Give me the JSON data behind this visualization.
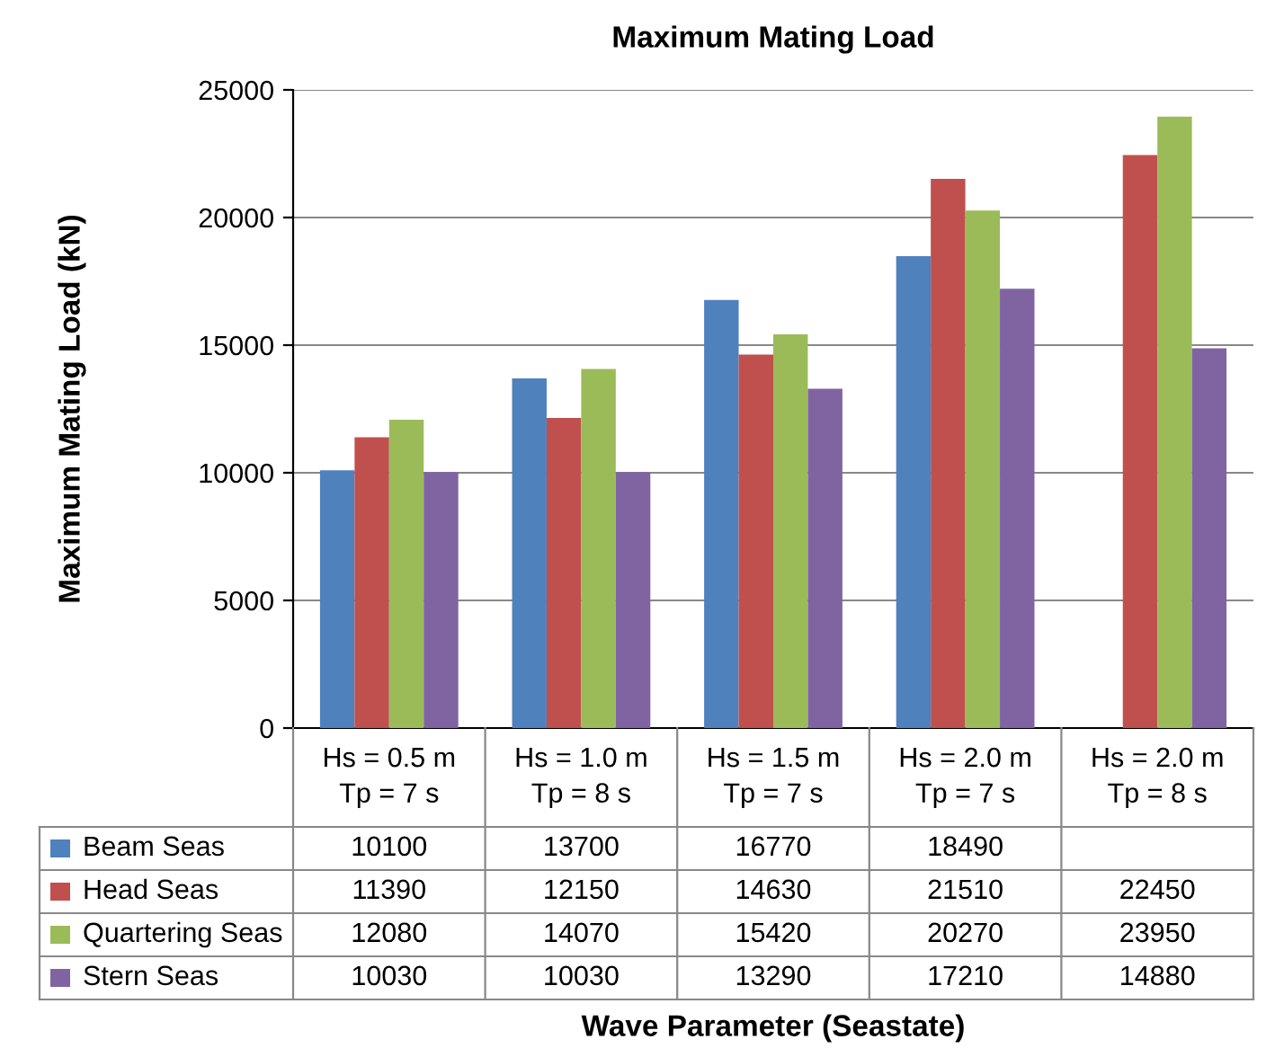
{
  "chart_data": {
    "type": "bar",
    "title": "Maximum Mating Load",
    "annotations": [
      "Wave Parameter (Seastate)"
    ],
    "ylabel": "Maximum Mating Load (kN)",
    "categories": [
      "Hs = 0.5 m\nTp = 7 s",
      "Hs = 1.0 m\nTp = 8 s",
      "Hs = 1.5 m\nTp = 7 s",
      "Hs = 2.0 m\nTp = 7 s",
      "Hs = 2.0 m\nTp = 8 s"
    ],
    "series": [
      {
        "name": "Beam Seas",
        "color": "#4f81bd",
        "values": [
          10100,
          13700,
          16770,
          18490,
          null
        ]
      },
      {
        "name": "Head Seas",
        "color": "#c0504d",
        "values": [
          11390,
          12150,
          14630,
          21510,
          22450
        ]
      },
      {
        "name": "Quartering Seas",
        "color": "#9bbb59",
        "values": [
          12080,
          14070,
          15420,
          20270,
          23950
        ]
      },
      {
        "name": "Stern Seas",
        "color": "#8064a2",
        "values": [
          10030,
          10030,
          13290,
          17210,
          14880
        ]
      }
    ],
    "ylim": [
      0,
      25000
    ],
    "yticks": [
      0,
      5000,
      10000,
      15000,
      20000,
      25000
    ],
    "grid": "y",
    "legend": "bottom",
    "data_labels": true
  }
}
